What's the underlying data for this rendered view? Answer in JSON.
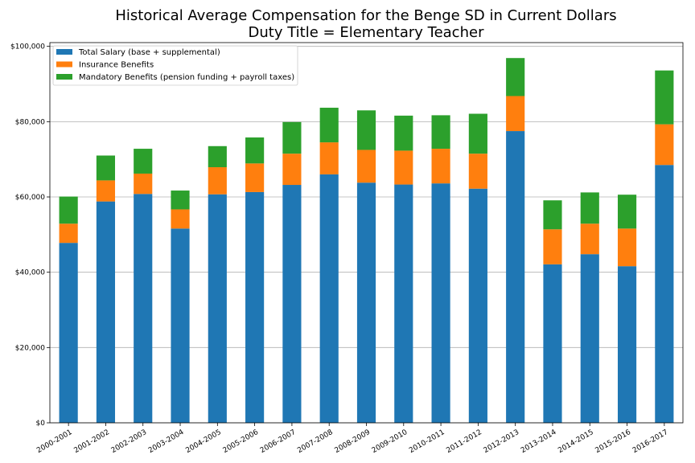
{
  "chart_data": {
    "type": "bar",
    "stacked": true,
    "title": [
      "Historical Average Compensation for the Benge SD in Current Dollars",
      "Duty Title = Elementary Teacher"
    ],
    "xlabel": "",
    "ylabel": "",
    "ylim": [
      0,
      101000
    ],
    "yticks": [
      0,
      20000,
      40000,
      60000,
      80000,
      100000
    ],
    "ytick_labels": [
      "$0",
      "$20,000",
      "$40,000",
      "$60,000",
      "$80,000",
      "$100,000"
    ],
    "grid": "horizontal",
    "legend_position": "top-left",
    "categories": [
      "2000-2001",
      "2001-2002",
      "2002-2003",
      "2003-2004",
      "2004-2005",
      "2005-2006",
      "2006-2007",
      "2007-2008",
      "2008-2009",
      "2009-2010",
      "2010-2011",
      "2011-2012",
      "2012-2013",
      "2013-2014",
      "2014-2015",
      "2015-2016",
      "2016-2017"
    ],
    "series": [
      {
        "name": "Total Salary (base + supplemental)",
        "color": "#1f77b4",
        "values": [
          47800,
          58800,
          60800,
          51600,
          60700,
          61300,
          63200,
          66000,
          63800,
          63300,
          63600,
          62200,
          77500,
          42100,
          44800,
          41600,
          68500
        ]
      },
      {
        "name": "Insurance Benefits",
        "color": "#ff7f0e",
        "values": [
          5100,
          5600,
          5400,
          5100,
          7200,
          7600,
          8300,
          8500,
          8700,
          9000,
          9200,
          9300,
          9300,
          9300,
          8100,
          10000,
          10800
        ]
      },
      {
        "name": "Mandatory Benefits (pension funding + payroll taxes)",
        "color": "#2ca02c",
        "values": [
          7200,
          6600,
          6600,
          5000,
          5600,
          6900,
          8400,
          9200,
          10500,
          9300,
          8900,
          10600,
          10100,
          7700,
          8300,
          9000,
          14300
        ]
      }
    ]
  }
}
